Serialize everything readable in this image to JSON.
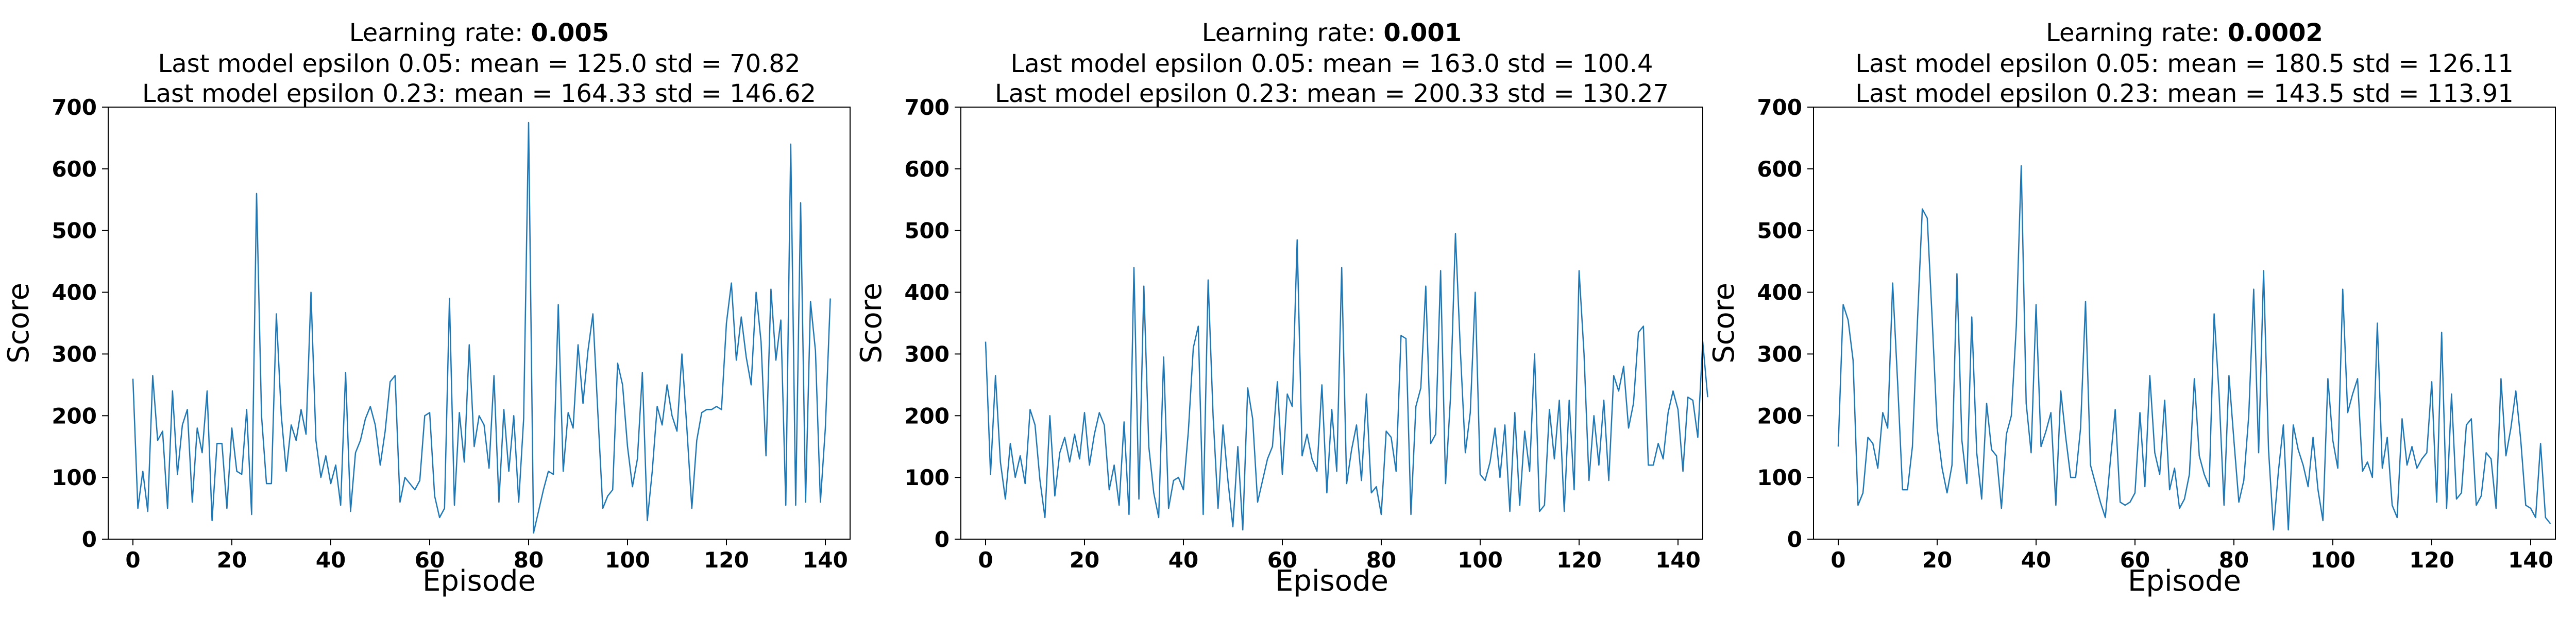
{
  "chart_data": [
    {
      "type": "line",
      "title": [
        "Learning rate: ",
        "0.005"
      ],
      "subtitle": [
        "Last model epsilon 0.05: mean = 125.0 std = 70.82",
        "Last model epsilon 0.23: mean = 164.33 std = 146.62"
      ],
      "xlabel": "Episode",
      "ylabel": "Score",
      "xlim": [
        -5,
        145
      ],
      "ylim": [
        0,
        700
      ],
      "xticks": [
        0,
        20,
        40,
        60,
        80,
        100,
        120,
        140
      ],
      "yticks": [
        0,
        100,
        200,
        300,
        400,
        500,
        600,
        700
      ],
      "series": [
        {
          "color": "#1f77b4",
          "values": [
            260,
            50,
            110,
            45,
            265,
            160,
            175,
            50,
            240,
            105,
            185,
            210,
            60,
            180,
            140,
            240,
            30,
            155,
            155,
            50,
            180,
            110,
            105,
            210,
            40,
            560,
            200,
            90,
            90,
            365,
            200,
            110,
            185,
            160,
            210,
            170,
            400,
            160,
            100,
            135,
            90,
            120,
            55,
            270,
            45,
            140,
            160,
            195,
            215,
            185,
            120,
            175,
            255,
            265,
            60,
            100,
            90,
            80,
            95,
            200,
            205,
            70,
            35,
            50,
            390,
            55,
            205,
            125,
            315,
            150,
            200,
            185,
            115,
            265,
            60,
            210,
            110,
            200,
            60,
            195,
            675,
            10,
            45,
            80,
            110,
            105,
            380,
            110,
            205,
            180,
            315,
            220,
            305,
            365,
            205,
            50,
            70,
            80,
            285,
            250,
            150,
            85,
            130,
            270,
            30,
            110,
            215,
            185,
            250,
            200,
            175,
            300,
            180,
            50,
            160,
            205,
            210,
            210,
            215,
            210,
            350,
            415,
            290,
            360,
            295,
            250,
            400,
            320,
            135,
            405,
            290,
            355,
            55,
            640,
            55,
            545,
            60,
            385,
            305,
            60,
            180,
            390
          ]
        }
      ]
    },
    {
      "type": "line",
      "title": [
        "Learning rate: ",
        "0.001"
      ],
      "subtitle": [
        "Last model epsilon 0.05: mean = 163.0 std = 100.4",
        "Last model epsilon 0.23: mean = 200.33 std = 130.27"
      ],
      "xlabel": "Episode",
      "ylabel": "Score",
      "xlim": [
        -5,
        145
      ],
      "ylim": [
        0,
        700
      ],
      "xticks": [
        0,
        20,
        40,
        60,
        80,
        100,
        120,
        140
      ],
      "yticks": [
        0,
        100,
        200,
        300,
        400,
        500,
        600,
        700
      ],
      "series": [
        {
          "color": "#1f77b4",
          "values": [
            320,
            105,
            265,
            125,
            65,
            155,
            100,
            135,
            90,
            210,
            185,
            95,
            35,
            200,
            70,
            140,
            165,
            125,
            170,
            130,
            205,
            120,
            170,
            205,
            185,
            80,
            120,
            55,
            190,
            40,
            440,
            65,
            410,
            150,
            75,
            35,
            295,
            50,
            95,
            100,
            80,
            175,
            310,
            345,
            40,
            420,
            200,
            50,
            185,
            95,
            20,
            150,
            15,
            245,
            195,
            60,
            95,
            130,
            150,
            255,
            105,
            235,
            215,
            485,
            135,
            170,
            130,
            110,
            250,
            75,
            210,
            110,
            440,
            90,
            145,
            185,
            95,
            235,
            75,
            85,
            40,
            175,
            165,
            110,
            330,
            325,
            40,
            215,
            245,
            410,
            155,
            170,
            435,
            90,
            230,
            495,
            305,
            140,
            205,
            400,
            105,
            95,
            125,
            180,
            100,
            185,
            45,
            205,
            55,
            175,
            110,
            300,
            45,
            55,
            210,
            130,
            225,
            45,
            225,
            80,
            435,
            300,
            95,
            200,
            120,
            225,
            95,
            265,
            240,
            280,
            180,
            220,
            335,
            345,
            120,
            120,
            155,
            130,
            205,
            240,
            210,
            110,
            230,
            225,
            165,
            320,
            230
          ]
        }
      ]
    },
    {
      "type": "line",
      "title": [
        "Learning rate: ",
        "0.0002"
      ],
      "subtitle": [
        "Last model epsilon 0.05: mean = 180.5 std = 126.11",
        "Last model epsilon 0.23: mean = 143.5 std = 113.91"
      ],
      "xlabel": "Episode",
      "ylabel": "Score",
      "xlim": [
        -5,
        145
      ],
      "ylim": [
        0,
        700
      ],
      "xticks": [
        0,
        20,
        40,
        60,
        80,
        100,
        120,
        140
      ],
      "yticks": [
        0,
        100,
        200,
        300,
        400,
        500,
        600,
        700
      ],
      "series": [
        {
          "color": "#1f77b4",
          "values": [
            150,
            380,
            355,
            290,
            55,
            75,
            165,
            155,
            115,
            205,
            180,
            415,
            255,
            80,
            80,
            150,
            350,
            535,
            520,
            355,
            180,
            115,
            75,
            120,
            430,
            160,
            90,
            360,
            140,
            65,
            220,
            145,
            135,
            50,
            170,
            200,
            345,
            605,
            220,
            140,
            380,
            150,
            175,
            205,
            55,
            240,
            165,
            100,
            100,
            180,
            385,
            120,
            90,
            60,
            35,
            125,
            210,
            60,
            55,
            60,
            75,
            205,
            85,
            265,
            140,
            105,
            225,
            80,
            115,
            50,
            65,
            105,
            260,
            135,
            105,
            85,
            365,
            235,
            55,
            265,
            160,
            60,
            95,
            200,
            405,
            140,
            435,
            145,
            15,
            110,
            185,
            15,
            185,
            145,
            120,
            85,
            165,
            80,
            30,
            260,
            160,
            115,
            405,
            205,
            235,
            260,
            110,
            125,
            100,
            350,
            115,
            165,
            55,
            35,
            195,
            120,
            150,
            115,
            130,
            140,
            255,
            60,
            335,
            50,
            235,
            65,
            75,
            185,
            195,
            55,
            70,
            140,
            130,
            50,
            260,
            135,
            180,
            240,
            160,
            55,
            50,
            35,
            155,
            35,
            25
          ]
        }
      ]
    }
  ]
}
